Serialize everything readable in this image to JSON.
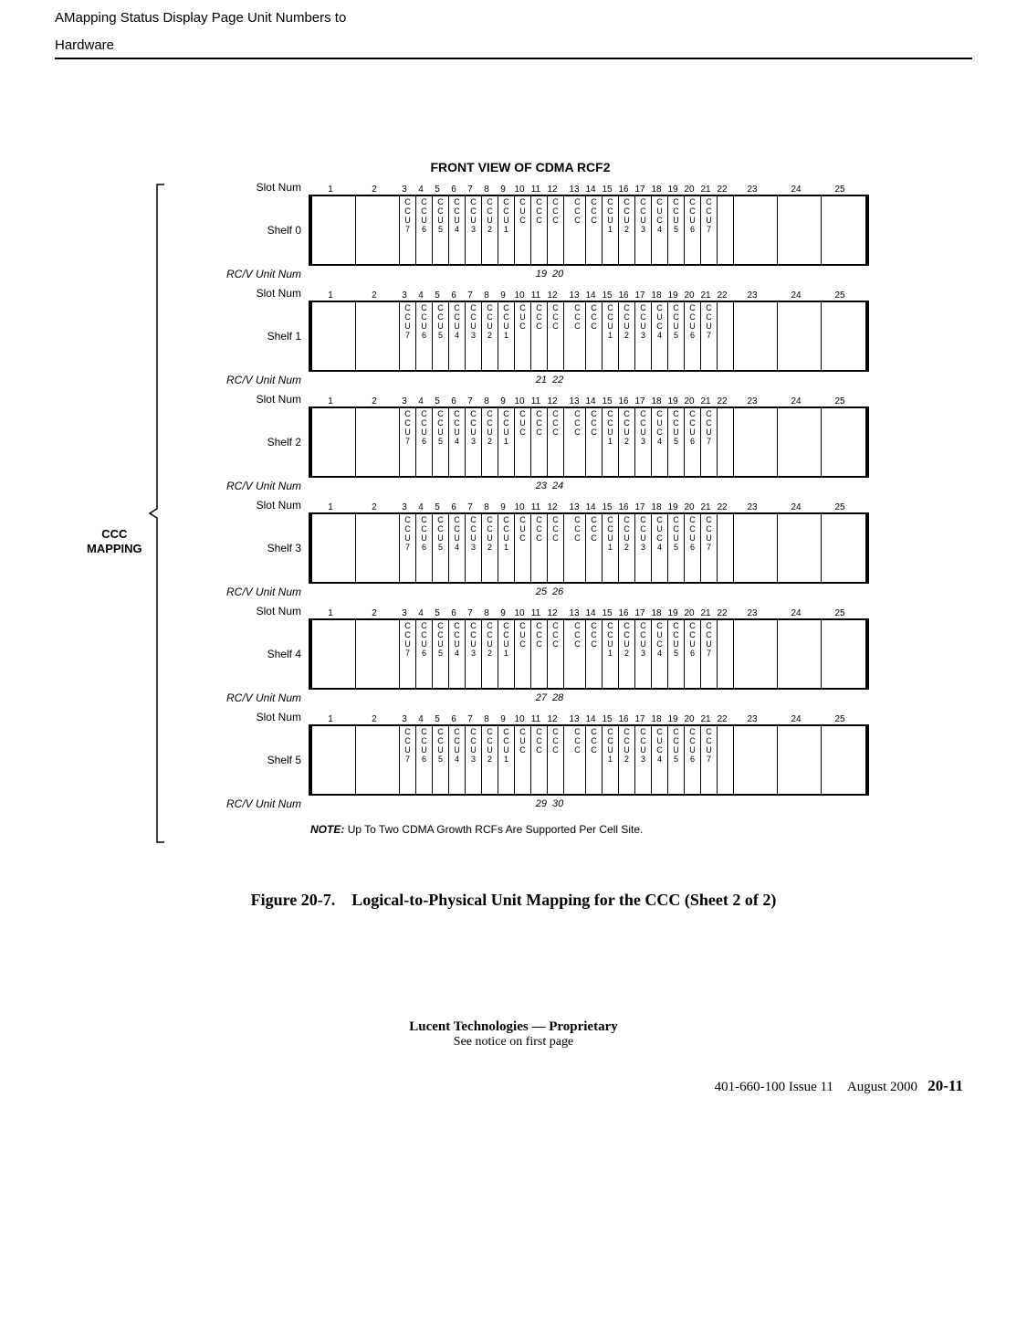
{
  "header": {
    "line1": "AMapping Status Display Page Unit Numbers to",
    "line2": "Hardware"
  },
  "diagram": {
    "title": "FRONT VIEW OF CDMA RCF2",
    "ccc_label_1": "CCC",
    "ccc_label_2": "MAPPING",
    "slot_num_label": "Slot Num",
    "rc_label": "RC/V Unit Num",
    "slot_numbers": [
      "1",
      "2",
      "3",
      "4",
      "5",
      "6",
      "7",
      "8",
      "9",
      "10",
      "11",
      "12",
      "",
      "13",
      "14",
      "15",
      "16",
      "17",
      "18",
      "19",
      "20",
      "21",
      "22",
      "23",
      "24",
      "25"
    ],
    "slot_widths": [
      "wide",
      "wide",
      "narrow",
      "narrow",
      "narrow",
      "narrow",
      "narrow",
      "narrow",
      "narrow",
      "narrow",
      "narrow",
      "narrow",
      "gap",
      "narrow",
      "narrow",
      "narrow",
      "narrow",
      "narrow",
      "narrow",
      "narrow",
      "narrow",
      "narrow",
      "narrow",
      "wide",
      "wide",
      "wide"
    ],
    "card_labels_left": [
      "",
      "",
      "CCU7",
      "CCU6",
      "CCU5",
      "CCU4",
      "CCU3",
      "CCU2",
      "CCU1",
      "CUC",
      "CCC",
      "CCC"
    ],
    "card_labels_right": [
      "CCC",
      "CCC",
      "CCU1",
      "CCU2",
      "CCU3",
      "CUC4",
      "CCU5",
      "CCU6",
      "CCU7",
      "",
      "",
      "",
      ""
    ],
    "shelves": [
      {
        "name": "Shelf 0",
        "rc_left": "19",
        "rc_right": "20"
      },
      {
        "name": "Shelf 1",
        "rc_left": "21",
        "rc_right": "22"
      },
      {
        "name": "Shelf 2",
        "rc_left": "23",
        "rc_right": "24"
      },
      {
        "name": "Shelf 3",
        "rc_left": "25",
        "rc_right": "26"
      },
      {
        "name": "Shelf 4",
        "rc_left": "27",
        "rc_right": "28"
      },
      {
        "name": "Shelf 5",
        "rc_left": "29",
        "rc_right": "30"
      }
    ],
    "note_bold": "NOTE:",
    "note_text": "Up To Two CDMA Growth RCFs Are Supported Per Cell Site.",
    "caption": "Figure 20-7. Logical-to-Physical Unit Mapping for the CCC (Sheet 2 of 2)"
  },
  "footer": {
    "line1": "Lucent Technologies — Proprietary",
    "line2": "See notice on first page",
    "issue": "401-660-100 Issue 11 August 2000",
    "page": "20-11"
  },
  "colors": {
    "text": "#000000",
    "bg": "#ffffff"
  }
}
